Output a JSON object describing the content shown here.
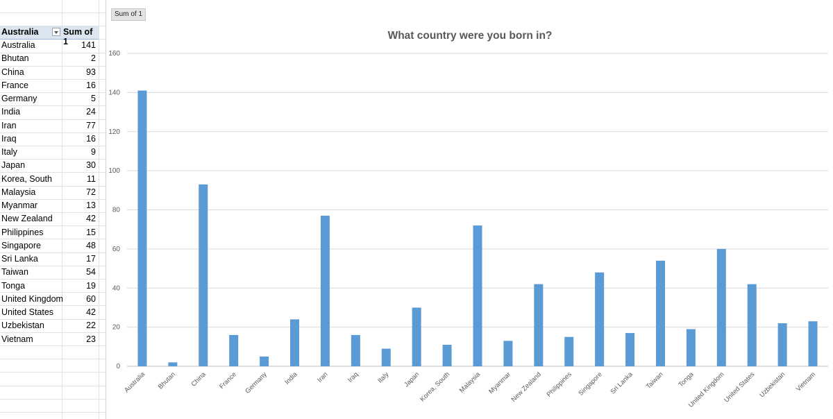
{
  "pivot": {
    "row_header": "Australia",
    "value_header": "Sum of 1",
    "rows": [
      {
        "label": "Australia",
        "value": "141"
      },
      {
        "label": "Bhutan",
        "value": "2"
      },
      {
        "label": "China",
        "value": "93"
      },
      {
        "label": "France",
        "value": "16"
      },
      {
        "label": "Germany",
        "value": "5"
      },
      {
        "label": "India",
        "value": "24"
      },
      {
        "label": "Iran",
        "value": "77"
      },
      {
        "label": "Iraq",
        "value": "16"
      },
      {
        "label": "Italy",
        "value": "9"
      },
      {
        "label": "Japan",
        "value": "30"
      },
      {
        "label": "Korea, South",
        "value": "11"
      },
      {
        "label": "Malaysia",
        "value": "72"
      },
      {
        "label": "Myanmar",
        "value": "13"
      },
      {
        "label": "New Zealand",
        "value": "42"
      },
      {
        "label": "Philippines",
        "value": "15"
      },
      {
        "label": "Singapore",
        "value": "48"
      },
      {
        "label": "Sri Lanka",
        "value": "17"
      },
      {
        "label": "Taiwan",
        "value": "54"
      },
      {
        "label": "Tonga",
        "value": "19"
      },
      {
        "label": "United Kingdom",
        "value": "60"
      },
      {
        "label": "United States",
        "value": "42"
      },
      {
        "label": "Uzbekistan",
        "value": "22"
      },
      {
        "label": "Vietnam",
        "value": "23"
      }
    ]
  },
  "chart_field_button": "Sum of 1",
  "chart_data": {
    "type": "bar",
    "title": "What country were you born in?",
    "xlabel": "",
    "ylabel": "",
    "categories": [
      "Australia",
      "Bhutan",
      "China",
      "France",
      "Germany",
      "India",
      "Iran",
      "Iraq",
      "Italy",
      "Japan",
      "Korea, South",
      "Malaysia",
      "Myanmar",
      "New Zealand",
      "Philippines",
      "Singapore",
      "Sri Lanka",
      "Taiwan",
      "Tonga",
      "United Kingdom",
      "United States",
      "Uzbekistan",
      "Vietnam"
    ],
    "values": [
      141,
      2,
      93,
      16,
      5,
      24,
      77,
      16,
      9,
      30,
      11,
      72,
      13,
      42,
      15,
      48,
      17,
      54,
      19,
      60,
      42,
      22,
      23
    ],
    "ylim": [
      0,
      160
    ],
    "yticks": [
      0,
      20,
      40,
      60,
      80,
      100,
      120,
      140,
      160
    ],
    "grid": true,
    "legend": "none",
    "bar_color": "#5b9bd5"
  }
}
